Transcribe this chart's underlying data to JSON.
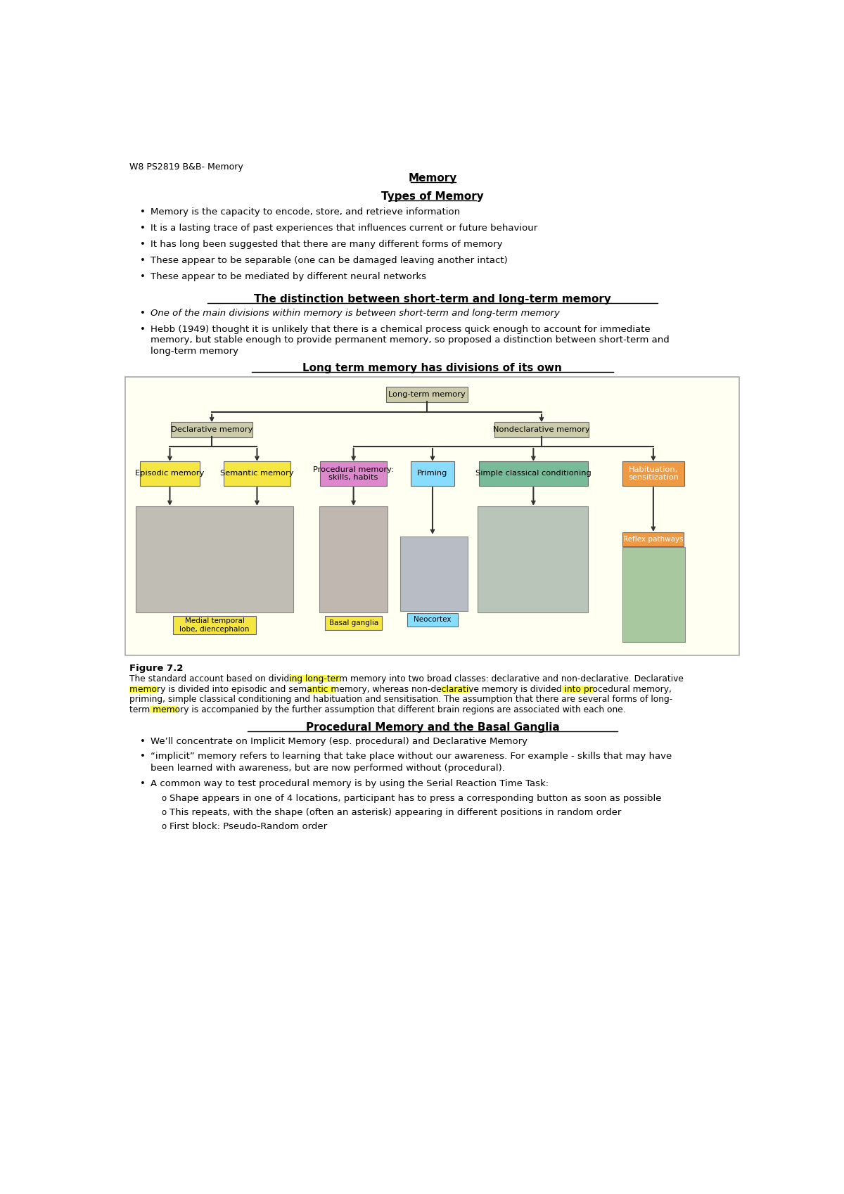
{
  "header": "W8 PS2819 B&B- Memory",
  "title": "Memory",
  "section1_title": "Types of Memory",
  "bullets1": [
    "Memory is the capacity to encode, store, and retrieve information",
    "It is a lasting trace of past experiences that influences current or future behaviour",
    "It has long been suggested that there are many different forms of memory",
    "These appear to be separable (one can be damaged leaving another intact)",
    "These appear to be mediated by different neural networks"
  ],
  "section2_title": "The distinction between short-term and long-term memory",
  "bullet2_italic": "One of the main divisions within memory is between short-term and long-term memory",
  "bullet2_normal_lines": [
    "Hebb (1949) thought it is unlikely that there is a chemical process quick enough to account for immediate",
    "memory, but stable enough to provide permanent memory, so proposed a distinction between short-term and",
    "long-term memory"
  ],
  "section3_title": "Long term memory has divisions of its own",
  "diagram_bg": "#FFFFF2",
  "fig_caption_title": "Figure 7.2",
  "fig_caption_lines": [
    "The standard account based on dividing long-term memory into two broad classes: declarative and non-declarative. Declarative",
    "memory is divided into episodic and semantic memory, whereas non-declarative memory is divided into procedural memory,",
    "priming, simple classical conditioning and habituation and sensitisation. The assumption that there are several forms of long-",
    "term memory is accompanied by the further assumption that different brain regions are associated with each one."
  ],
  "section4_title": "Procedural Memory and the Basal Ganglia",
  "bullets4": [
    "We’ll concentrate on Implicit Memory (esp. procedural) and Declarative Memory",
    "“implicit” memory refers to learning that take place without our awareness. For example - skills that may have",
    "been learned with awareness, but are now performed without (procedural).",
    "A common way to test procedural memory is by using the Serial Reaction Time Task:"
  ],
  "bullets4_wrap": [
    false,
    true,
    false,
    false
  ],
  "sub_bullets4": [
    "Shape appears in one of 4 locations, participant has to press a corresponding button as soon as possible",
    "This repeats, with the shape (often an asterisk) appearing in different positions in random order",
    "First block: Pseudo-Random order"
  ],
  "background_color": "#FFFFFF",
  "highlight_yellow": "#FFFF00",
  "line_color": "#333333",
  "box_color_ltm": "#CCCCAA",
  "box_color_episodic": "#F5E642",
  "box_color_semantic": "#F5E642",
  "box_color_procedural": "#DD88CC",
  "box_color_priming": "#88DDFF",
  "box_color_scc": "#77BB99",
  "box_color_hab": "#EE9944",
  "box_color_reflex": "#EE9944",
  "brain_color": "#BBBBBB",
  "diagram_border": "#AAAAAA"
}
